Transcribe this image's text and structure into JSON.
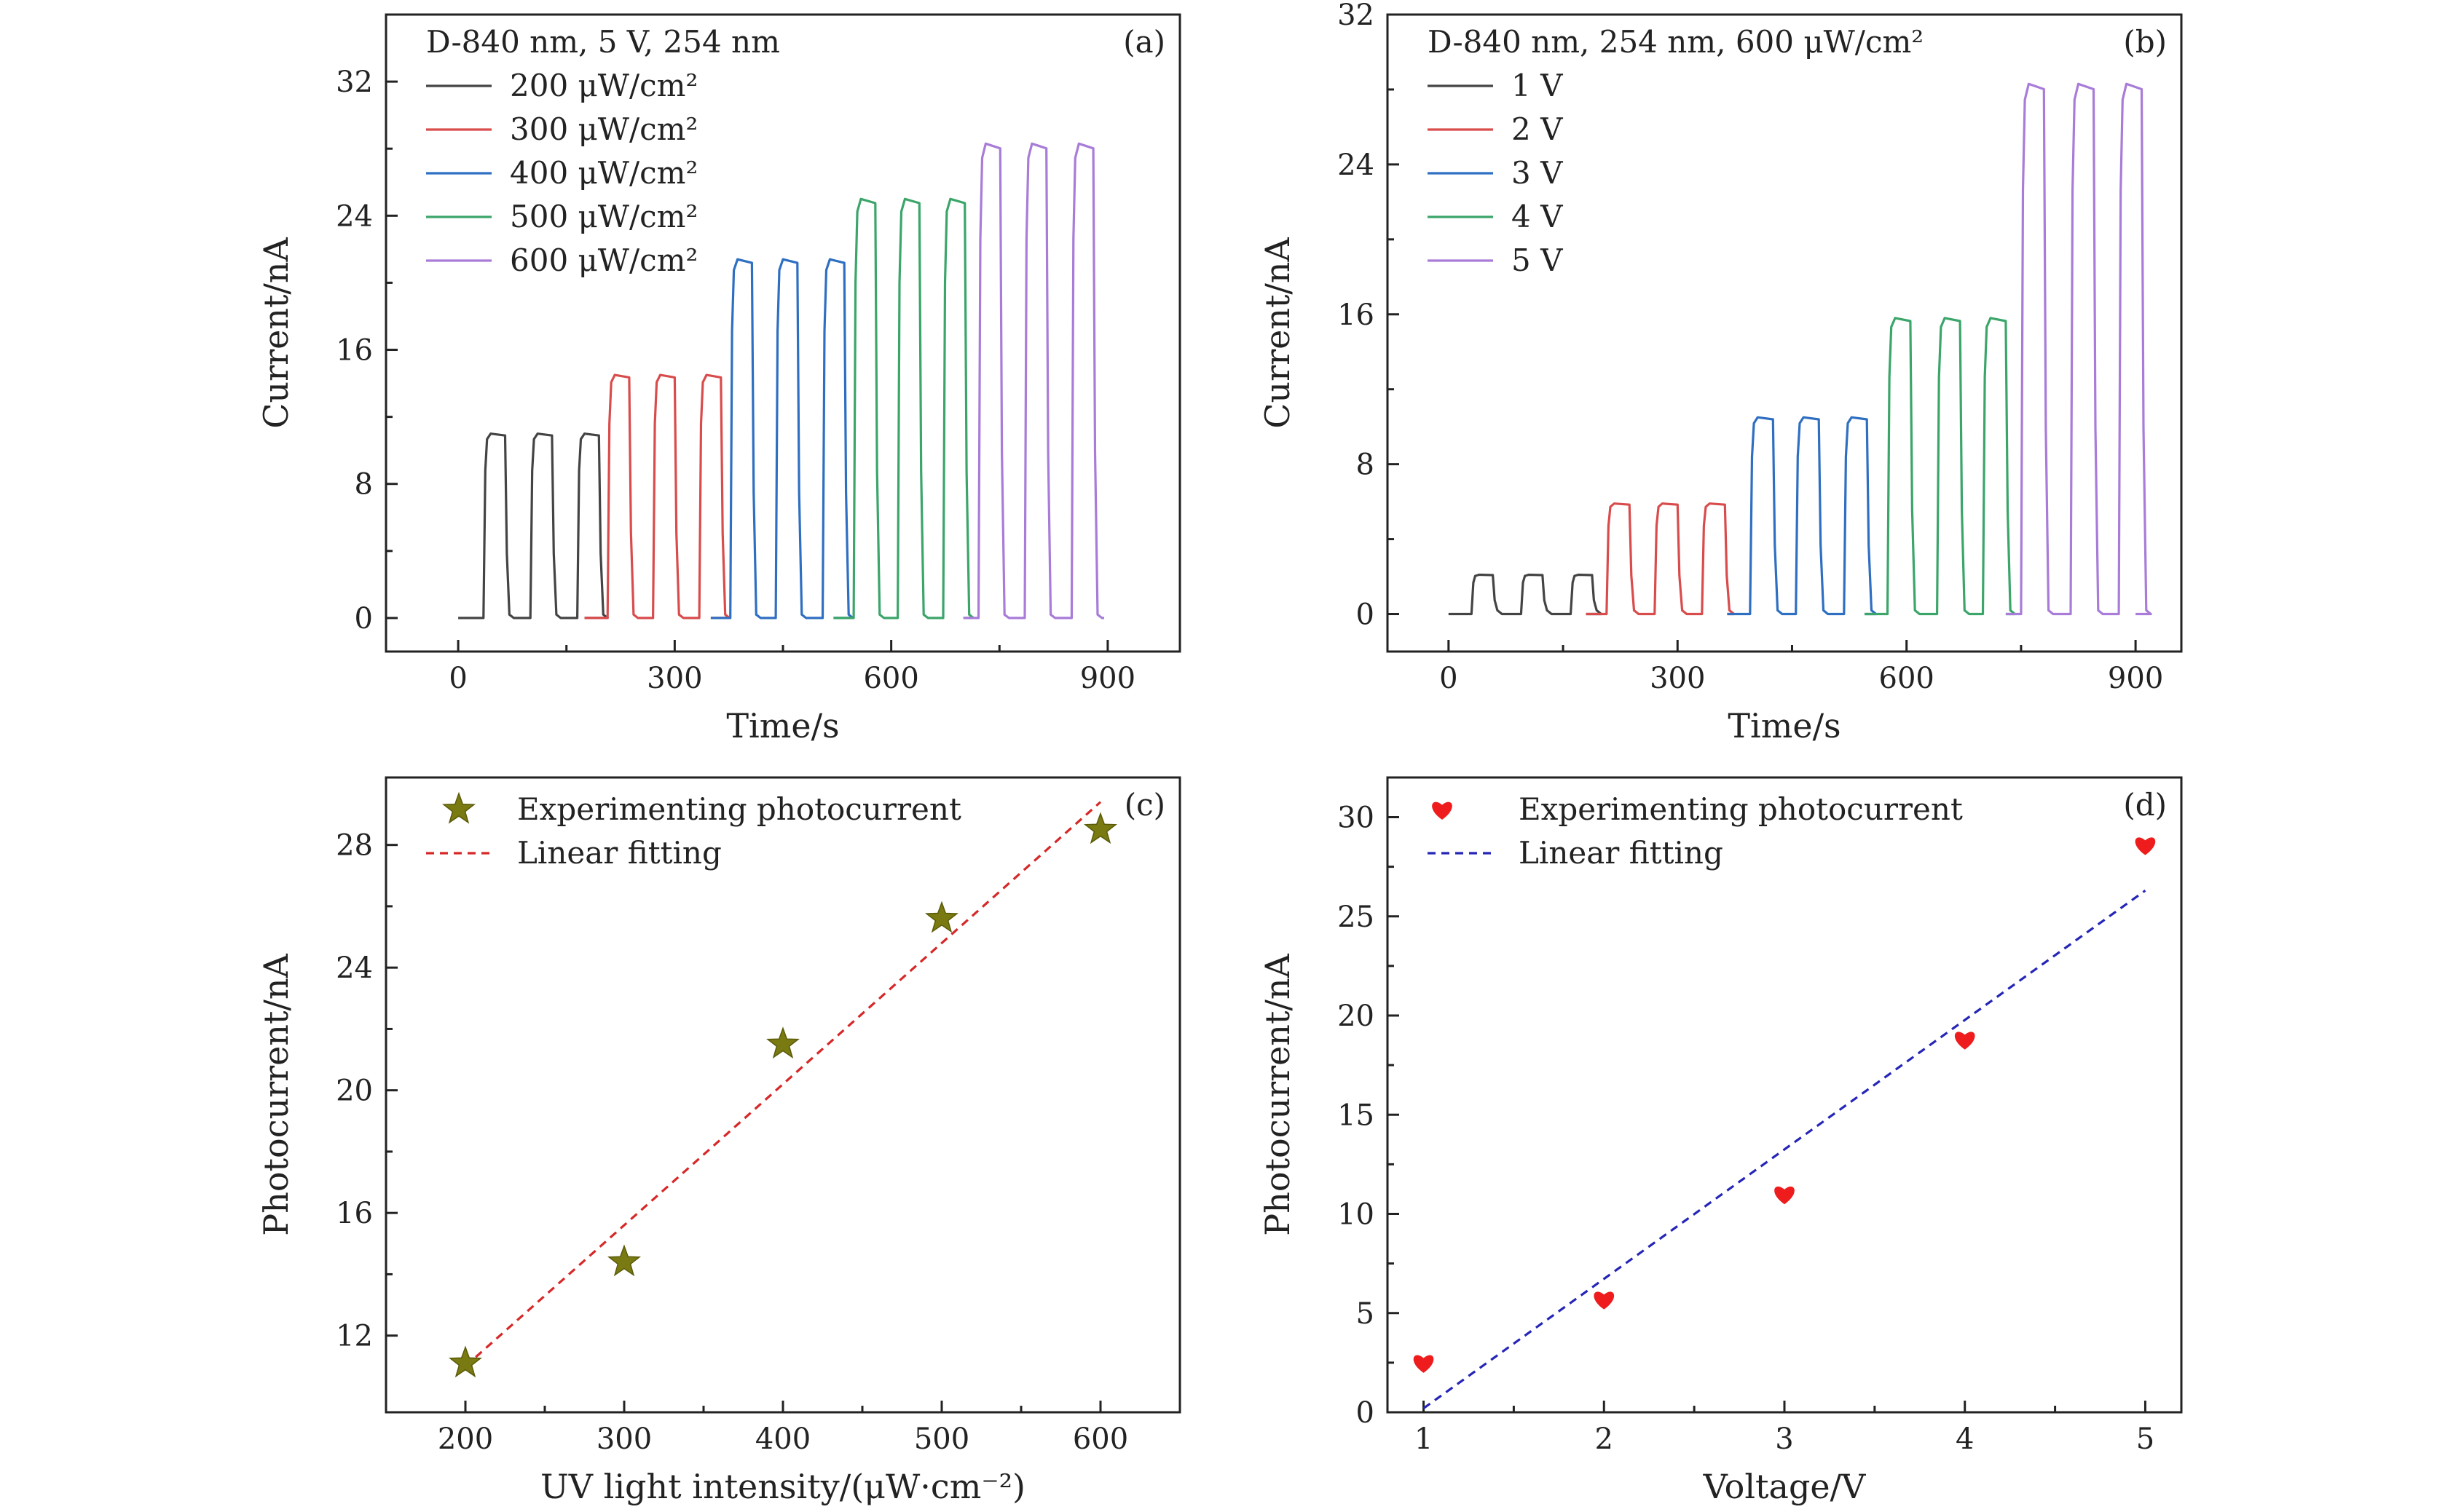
{
  "chart_data": [
    {
      "panel": "(a)",
      "type": "line",
      "header": "D-840 nm, 5 V, 254 nm",
      "xlabel": "Time/s",
      "ylabel": "Current/nA",
      "xlim": [
        -100,
        1000
      ],
      "ylim": [
        -2,
        36
      ],
      "xticks": [
        0,
        300,
        600,
        900
      ],
      "yticks": [
        0,
        8,
        16,
        24,
        32
      ],
      "grid": false,
      "legend_position": "top-left",
      "series": [
        {
          "name": "200 μW/cm²",
          "color": "#444444",
          "t_start": 0,
          "t_end": 175,
          "on_times": [
            35,
            100,
            165
          ],
          "on_duration": 30,
          "peak": 11.0
        },
        {
          "name": "300 μW/cm²",
          "color": "#d94c4c",
          "t_start": 175,
          "t_end": 350,
          "on_times": [
            207,
            270,
            334
          ],
          "on_duration": 30,
          "peak": 14.5
        },
        {
          "name": "400 μW/cm²",
          "color": "#2f6fc2",
          "t_start": 350,
          "t_end": 520,
          "on_times": [
            377,
            440,
            505
          ],
          "on_duration": 30,
          "peak": 21.4
        },
        {
          "name": "500 μW/cm²",
          "color": "#3ba56a",
          "t_start": 520,
          "t_end": 700,
          "on_times": [
            548,
            609,
            672
          ],
          "on_duration": 30,
          "peak": 25.0
        },
        {
          "name": "600 μW/cm²",
          "color": "#a87cd8",
          "t_start": 700,
          "t_end": 895,
          "on_times": [
            721,
            785,
            850
          ],
          "on_duration": 30,
          "peak": 28.3
        }
      ]
    },
    {
      "panel": "(b)",
      "type": "line",
      "header": "D-840 nm, 254 nm, 600 μW/cm²",
      "xlabel": "Time/s",
      "ylabel": "Current/nA",
      "xlim": [
        -80,
        960
      ],
      "ylim": [
        -2,
        32
      ],
      "xticks": [
        0,
        300,
        600,
        900
      ],
      "yticks": [
        0,
        8,
        16,
        24,
        32
      ],
      "grid": false,
      "legend_position": "top-left",
      "series": [
        {
          "name": "1 V",
          "color": "#444444",
          "t_start": 0,
          "t_end": 180,
          "on_times": [
            30,
            95,
            160
          ],
          "on_duration": 28,
          "peak": 2.1
        },
        {
          "name": "2 V",
          "color": "#d94c4c",
          "t_start": 180,
          "t_end": 365,
          "on_times": [
            207,
            270,
            332
          ],
          "on_duration": 30,
          "peak": 5.9
        },
        {
          "name": "3 V",
          "color": "#2f6fc2",
          "t_start": 365,
          "t_end": 545,
          "on_times": [
            395,
            455,
            518
          ],
          "on_duration": 30,
          "peak": 10.5
        },
        {
          "name": "4 V",
          "color": "#3ba56a",
          "t_start": 545,
          "t_end": 730,
          "on_times": [
            575,
            640,
            700
          ],
          "on_duration": 30,
          "peak": 15.8
        },
        {
          "name": "5 V",
          "color": "#a87cd8",
          "t_start": 730,
          "t_end": 900,
          "on_times": [
            750,
            815,
            878
          ],
          "on_duration": 30,
          "peak": 28.3
        }
      ]
    },
    {
      "panel": "(c)",
      "type": "scatter",
      "xlabel": "UV light intensity/(μW·cm⁻²)",
      "ylabel": "Photocurrent/nA",
      "xlim": [
        150,
        650
      ],
      "ylim": [
        9.5,
        30.2
      ],
      "xticks": [
        200,
        300,
        400,
        500,
        600
      ],
      "yticks": [
        12,
        16,
        20,
        24,
        28
      ],
      "grid": false,
      "legend_position": "top-left",
      "series": [
        {
          "name": "Experimenting photocurrent",
          "marker": "star",
          "color": "#7a7a12",
          "x": [
            200,
            300,
            400,
            500,
            600
          ],
          "y": [
            11.1,
            14.4,
            21.5,
            25.6,
            28.5
          ]
        },
        {
          "name": "Linear fitting",
          "line": "dashed",
          "color": "#d62828",
          "x": [
            200,
            600
          ],
          "y": [
            11.0,
            29.4
          ]
        }
      ]
    },
    {
      "panel": "(d)",
      "type": "scatter",
      "xlabel": "Voltage/V",
      "ylabel": "Photocurrent/nA",
      "xlim": [
        0.8,
        5.2
      ],
      "ylim": [
        0,
        32
      ],
      "xticks": [
        1,
        2,
        3,
        4,
        5
      ],
      "yticks": [
        0,
        5,
        10,
        15,
        20,
        25,
        30
      ],
      "grid": false,
      "legend_position": "top-left",
      "series": [
        {
          "name": "Experimenting photocurrent",
          "marker": "heart",
          "color": "#ee1c1c",
          "x": [
            1,
            2,
            3,
            4,
            5
          ],
          "y": [
            2.5,
            5.7,
            11.0,
            18.8,
            28.6
          ]
        },
        {
          "name": "Linear fitting",
          "line": "dashed",
          "color": "#2525b8",
          "x": [
            1,
            5
          ],
          "y": [
            0.2,
            26.3
          ]
        }
      ]
    }
  ]
}
